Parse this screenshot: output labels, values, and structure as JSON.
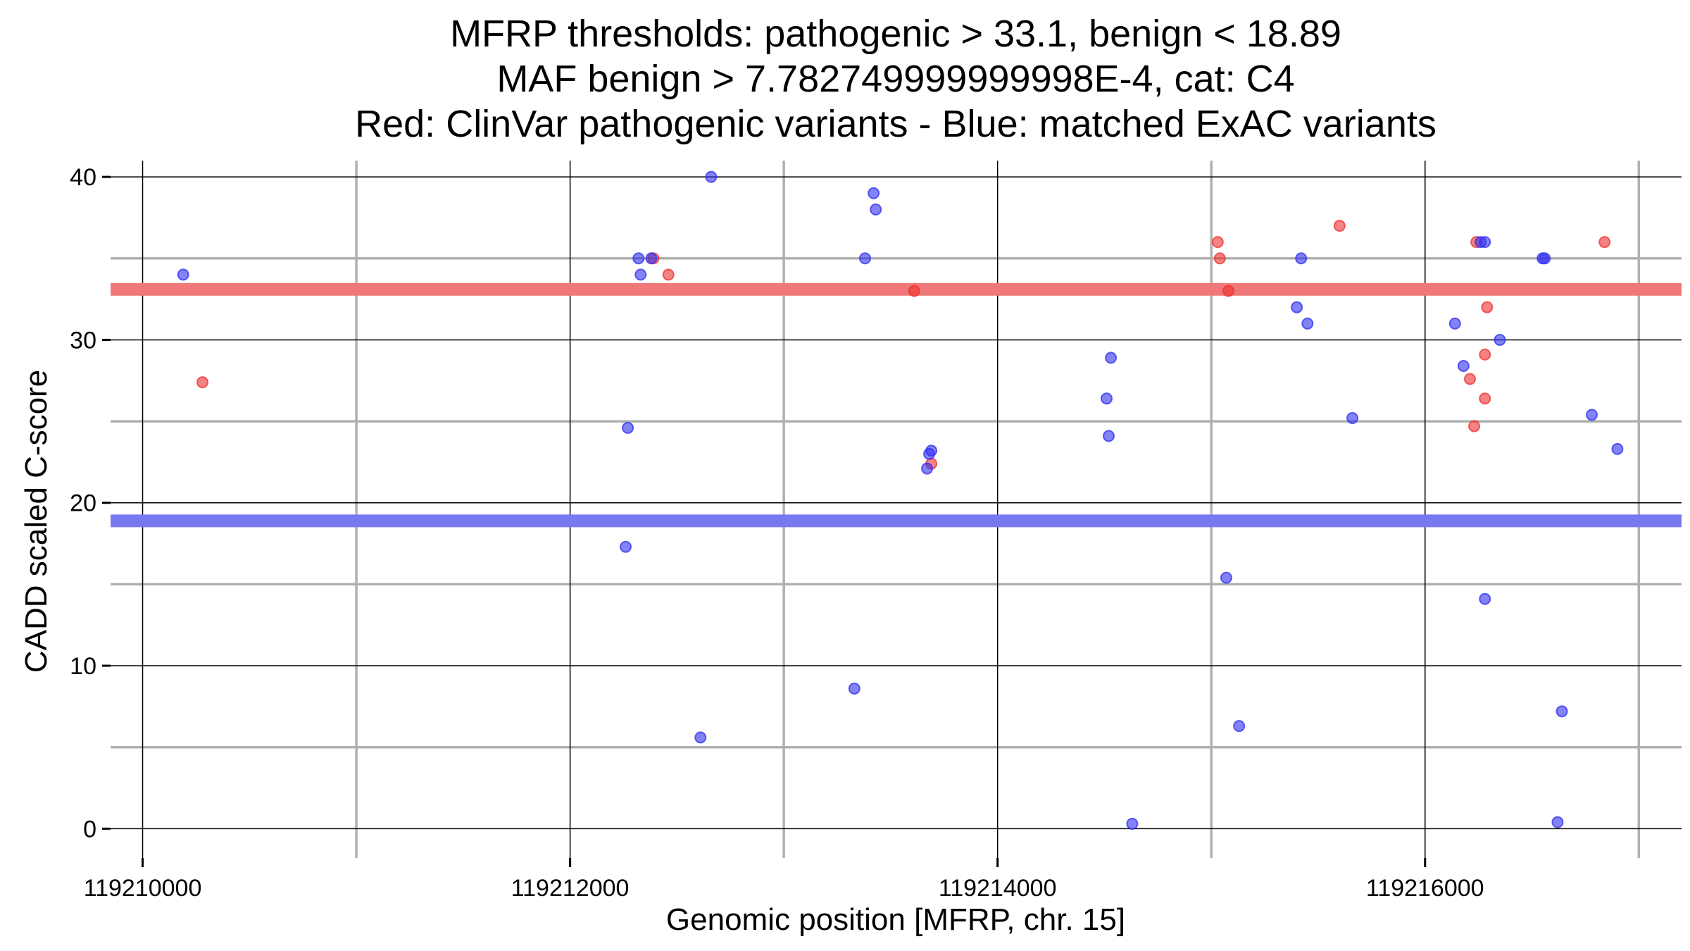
{
  "chart_data": {
    "type": "scatter",
    "title_lines": [
      "MFRP thresholds: pathogenic > 33.1, benign < 18.89",
      "MAF benign > 7.782749999999998E-4, cat: C4",
      "Red: ClinVar pathogenic variants - Blue: matched ExAC variants"
    ],
    "xlabel": "Genomic position [MFRP, chr. 15]",
    "ylabel": "CADD scaled C-score",
    "xlim": [
      119209850,
      119217200
    ],
    "ylim": [
      -1.8,
      41
    ],
    "x_major_ticks": [
      119210000,
      119212000,
      119214000,
      119216000
    ],
    "x_tick_labels": [
      "119210000",
      "119212000",
      "119214000",
      "119216000"
    ],
    "x_minor_grid": [
      119211000,
      119213000,
      119215000,
      119217000
    ],
    "y_major_ticks": [
      0,
      10,
      20,
      30,
      40
    ],
    "y_tick_labels": [
      "0",
      "10",
      "20",
      "30",
      "40"
    ],
    "y_minor_grid": [
      5,
      15,
      25,
      35
    ],
    "thresholds": [
      {
        "name": "pathogenic",
        "value": 33.1,
        "color": "#f07878"
      },
      {
        "name": "benign",
        "value": 18.89,
        "color": "#7878f0"
      }
    ],
    "series": [
      {
        "name": "ClinVar pathogenic variants",
        "color": "#f03030",
        "points": [
          [
            119210280,
            27.4
          ],
          [
            119212390,
            35.0
          ],
          [
            119212460,
            34.0
          ],
          [
            119213690,
            22.4
          ],
          [
            119213610,
            33.0
          ],
          [
            119215030,
            36.0
          ],
          [
            119215040,
            35.0
          ],
          [
            119215080,
            33.0
          ],
          [
            119215600,
            37.0
          ],
          [
            119216240,
            36.0
          ],
          [
            119216290,
            32.0
          ],
          [
            119216280,
            29.1
          ],
          [
            119216210,
            27.6
          ],
          [
            119216280,
            26.4
          ],
          [
            119216230,
            24.7
          ],
          [
            119216840,
            36.0
          ]
        ]
      },
      {
        "name": "matched ExAC variants",
        "color": "#3030f0",
        "points": [
          [
            119210190,
            34.0
          ],
          [
            119212320,
            35.0
          ],
          [
            119212330,
            34.0
          ],
          [
            119212380,
            35.0
          ],
          [
            119212660,
            40.0
          ],
          [
            119213420,
            39.0
          ],
          [
            119213430,
            38.0
          ],
          [
            119213380,
            35.0
          ],
          [
            119212270,
            24.6
          ],
          [
            119212260,
            17.3
          ],
          [
            119212610,
            5.6
          ],
          [
            119213330,
            8.6
          ],
          [
            119213690,
            23.2
          ],
          [
            119213680,
            23.0
          ],
          [
            119213670,
            22.1
          ],
          [
            119214530,
            28.9
          ],
          [
            119214510,
            26.4
          ],
          [
            119214520,
            24.1
          ],
          [
            119214630,
            0.3
          ],
          [
            119215070,
            15.4
          ],
          [
            119215130,
            6.3
          ],
          [
            119215420,
            35.0
          ],
          [
            119215400,
            32.0
          ],
          [
            119215450,
            31.0
          ],
          [
            119215660,
            25.2
          ],
          [
            119216260,
            36.0
          ],
          [
            119216280,
            36.0
          ],
          [
            119216560,
            35.0
          ],
          [
            119216550,
            35.0
          ],
          [
            119216140,
            31.0
          ],
          [
            119216350,
            30.0
          ],
          [
            119216180,
            28.4
          ],
          [
            119216280,
            14.1
          ],
          [
            119216780,
            25.4
          ],
          [
            119216900,
            23.3
          ],
          [
            119216640,
            7.2
          ],
          [
            119216620,
            0.4
          ]
        ]
      }
    ]
  }
}
